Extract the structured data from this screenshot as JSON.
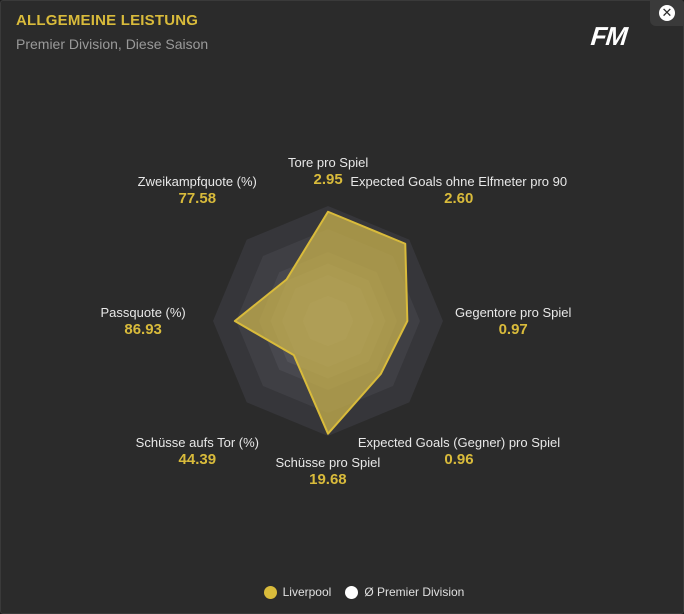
{
  "header": {
    "title": "ALLGEMEINE LEISTUNG",
    "subtitle": "Premier Division, Diese Saison",
    "logo": "FM"
  },
  "close_button": {
    "icon": "close-icon",
    "glyph": "✕"
  },
  "colors": {
    "accent": "#d9bb3b",
    "team_fill": "#cdb54d",
    "league": "#ffffff",
    "grid_outer": "#3a3a3e",
    "grid_inner": "#525258"
  },
  "chart_data": {
    "type": "radar",
    "title": "ALLGEMEINE LEISTUNG",
    "subtitle": "Premier Division, Diese Saison",
    "axes": [
      {
        "label": "Tore pro Spiel",
        "value": "2.95"
      },
      {
        "label": "Expected Goals ohne Elfmeter pro 90",
        "value": "2.60"
      },
      {
        "label": "Gegentore pro Spiel",
        "value": "0.97"
      },
      {
        "label": "Expected Goals (Gegner) pro Spiel",
        "value": "0.96"
      },
      {
        "label": "Schüsse pro Spiel",
        "value": "19.68"
      },
      {
        "label": "Schüsse aufs Tor (%)",
        "value": "44.39"
      },
      {
        "label": "Passquote (%)",
        "value": "86.93"
      },
      {
        "label": "Zweikampfquote (%)",
        "value": "77.58"
      }
    ],
    "series": [
      {
        "name": "Liverpool",
        "normalized": [
          0.95,
          0.95,
          0.69,
          0.65,
          0.98,
          0.42,
          0.81,
          0.51
        ]
      },
      {
        "name": "Ø Premier Division",
        "normalized": [
          0.5,
          0.5,
          0.5,
          0.5,
          0.5,
          0.5,
          0.5,
          0.5
        ]
      }
    ],
    "legend_position": "bottom-center"
  },
  "legend": {
    "items": [
      {
        "label": "Liverpool",
        "color": "#d9bb3b"
      },
      {
        "label": "Ø Premier Division",
        "color": "#ffffff"
      }
    ]
  }
}
